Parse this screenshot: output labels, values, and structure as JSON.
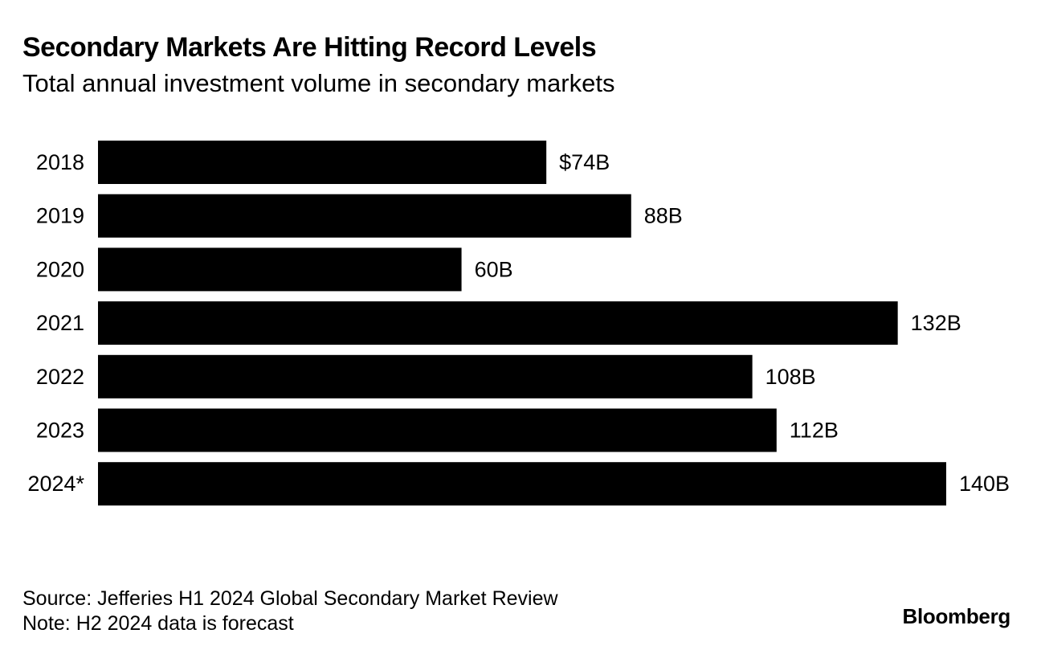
{
  "title": "Secondary Markets Are Hitting Record Levels",
  "subtitle": "Total annual investment volume in secondary markets",
  "chart_data": {
    "type": "bar",
    "orientation": "horizontal",
    "categories": [
      "2018",
      "2019",
      "2020",
      "2021",
      "2022",
      "2023",
      "2024*"
    ],
    "values": [
      74,
      88,
      60,
      132,
      108,
      112,
      140
    ],
    "value_labels": [
      "$74B",
      "88B",
      "60B",
      "132B",
      "108B",
      "112B",
      "140B"
    ],
    "unit": "billion USD",
    "xlim": [
      0,
      140
    ],
    "grid": false,
    "legend": "none",
    "bar_color": "#000000"
  },
  "footer": {
    "source": "Source: Jefferies H1 2024 Global Secondary Market Review",
    "note": "Note: H2 2024 data is forecast"
  },
  "brand": "Bloomberg"
}
